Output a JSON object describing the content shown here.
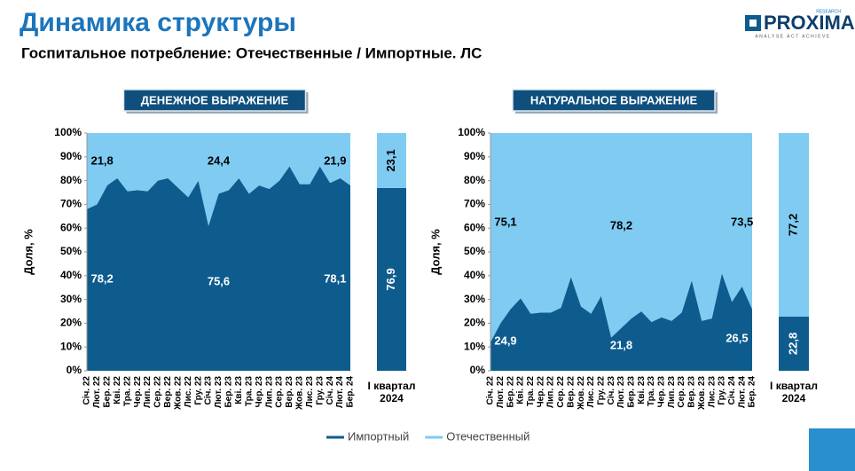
{
  "header": {
    "title": "Динамика структуры",
    "subtitle": "Госпитальное потребление: Отечественные / Импортные. ЛС",
    "logo": "PROXIMA",
    "logo_top": "RESEARCH",
    "logo_tagline": "ANALYSE ACT ACHIEVE"
  },
  "chart_data": [
    {
      "type": "area",
      "title": "ДЕНЕЖНОЕ ВЫРАЖЕНИЕ",
      "ylabel": "Доля, %",
      "categories": [
        "Січ. 22",
        "Лют. 22",
        "Бер. 22",
        "Кві. 22",
        "Тра. 22",
        "Чер. 22",
        "Лип. 22",
        "Сер. 22",
        "Вер. 22",
        "Жов. 22",
        "Лис. 22",
        "Гру. 22",
        "Січ. 23",
        "Лют. 23",
        "Бер. 23",
        "Кві. 23",
        "Тра. 23",
        "Чер. 23",
        "Лип. 23",
        "Сер. 23",
        "Вер. 23",
        "Жов. 23",
        "Лис. 23",
        "Гру. 23",
        "Січ. 24",
        "Лют. 24",
        "Бер. 24"
      ],
      "series": [
        {
          "name": "Импортный",
          "color": "#0e5c8e",
          "values": [
            68,
            70,
            78,
            81,
            75.5,
            76,
            75.5,
            80,
            81,
            77,
            73,
            80,
            61,
            74.5,
            76,
            81,
            74.5,
            78,
            76.5,
            80,
            86,
            78.5,
            78.5,
            86,
            79,
            81,
            78
          ]
        },
        {
          "name": "Отечественный",
          "color": "#7fcbf2",
          "values": [
            32,
            30,
            22,
            19,
            24.5,
            24,
            24.5,
            20,
            19,
            23,
            27,
            20,
            39,
            25.5,
            24,
            19,
            25.5,
            22,
            23.5,
            20,
            14,
            21.5,
            21.5,
            14,
            21,
            19,
            22
          ]
        }
      ],
      "ylim": [
        0,
        100
      ],
      "yticks": [
        {
          "value": 0,
          "label": "0%"
        },
        {
          "value": 10,
          "label": "10%"
        },
        {
          "value": 20,
          "label": "20%"
        },
        {
          "value": 30,
          "label": "30%"
        },
        {
          "value": 40,
          "label": "40%"
        },
        {
          "value": 50,
          "label": "50%"
        },
        {
          "value": 60,
          "label": "60%"
        },
        {
          "value": 70,
          "label": "70%"
        },
        {
          "value": 80,
          "label": "80%"
        },
        {
          "value": 90,
          "label": "90%"
        },
        {
          "value": 100,
          "label": "100%"
        }
      ],
      "annotations": [
        "21,8",
        "24,4",
        "21,9",
        "78,2",
        "75,6",
        "78,1"
      ]
    },
    {
      "type": "bar",
      "categories": [
        "І квартал 2024"
      ],
      "series": [
        {
          "name": "Импортный",
          "color": "#0e5c8e",
          "values": [
            76.9
          ],
          "value_labels": [
            "76,9"
          ]
        },
        {
          "name": "Отечественный",
          "color": "#7fcbf2",
          "values": [
            23.1
          ],
          "value_labels": [
            "23,1"
          ]
        }
      ],
      "ylim": [
        0,
        100
      ]
    },
    {
      "type": "area",
      "title": "НАТУРАЛЬНОЕ ВЫРАЖЕНИЕ",
      "ylabel": "Доля, %",
      "categories": [
        "Січ. 22",
        "Лют. 22",
        "Бер. 22",
        "Кві. 22",
        "Тра. 22",
        "Чер. 22",
        "Лип. 22",
        "Сер. 22",
        "Вер. 22",
        "Жов. 22",
        "Лис. 22",
        "Гру. 22",
        "Січ. 23",
        "Лют. 23",
        "Бер. 23",
        "Кві. 23",
        "Тра. 23",
        "Чер. 23",
        "Лип. 23",
        "Сер. 23",
        "Вер. 23",
        "Жов. 23",
        "Лис. 23",
        "Гру. 23",
        "Січ. 24",
        "Лют. 24",
        "Бер. 24"
      ],
      "series": [
        {
          "name": "Импортный",
          "color": "#0e5c8e",
          "values": [
            12,
            20,
            26,
            30.5,
            24,
            24.5,
            24.5,
            26.5,
            39.5,
            27,
            24,
            31.5,
            14,
            18,
            22,
            25,
            20.5,
            22.5,
            21,
            24.5,
            38,
            21,
            22,
            41,
            29,
            35.5,
            26
          ]
        },
        {
          "name": "Отечественный",
          "color": "#7fcbf2",
          "values": [
            88,
            80,
            74,
            69.5,
            76,
            75.5,
            75.5,
            73.5,
            60.5,
            73,
            76,
            68.5,
            86,
            82,
            78,
            75,
            79.5,
            77.5,
            79,
            75.5,
            62,
            79,
            78,
            59,
            71,
            64.5,
            74
          ]
        }
      ],
      "ylim": [
        0,
        100
      ],
      "yticks": [
        {
          "value": 0,
          "label": "0%"
        },
        {
          "value": 10,
          "label": "10%"
        },
        {
          "value": 20,
          "label": "20%"
        },
        {
          "value": 30,
          "label": "30%"
        },
        {
          "value": 40,
          "label": "40%"
        },
        {
          "value": 50,
          "label": "50%"
        },
        {
          "value": 60,
          "label": "60%"
        },
        {
          "value": 70,
          "label": "70%"
        },
        {
          "value": 80,
          "label": "80%"
        },
        {
          "value": 90,
          "label": "90%"
        },
        {
          "value": 100,
          "label": "100%"
        }
      ],
      "annotations": [
        "75,1",
        "78,2",
        "73,5",
        "24,9",
        "21,8",
        "26,5"
      ]
    },
    {
      "type": "bar",
      "categories": [
        "І квартал 2024"
      ],
      "series": [
        {
          "name": "Импортный",
          "color": "#0e5c8e",
          "values": [
            22.8
          ],
          "value_labels": [
            "22,8"
          ]
        },
        {
          "name": "Отечественный",
          "color": "#7fcbf2",
          "values": [
            77.2
          ],
          "value_labels": [
            "77,2"
          ]
        }
      ],
      "ylim": [
        0,
        100
      ]
    }
  ]
}
